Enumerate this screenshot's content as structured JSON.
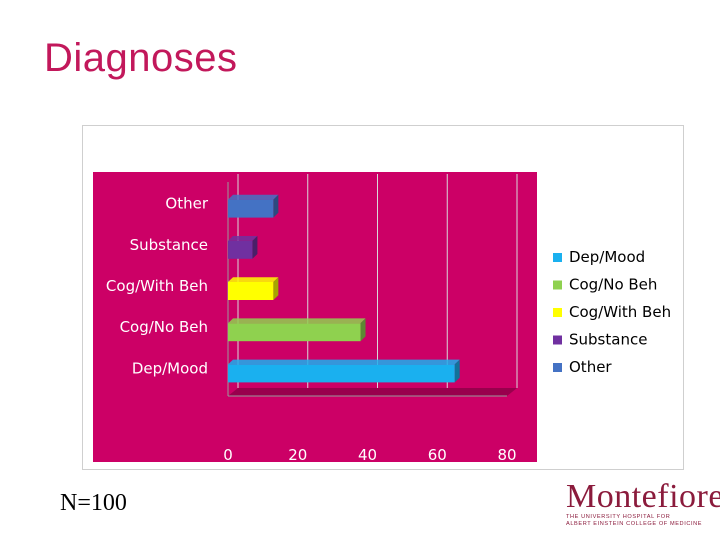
{
  "slide": {
    "title": "Diagnoses",
    "sample_size": "N=100",
    "logo": {
      "name": "Montefiore",
      "tagline_1": "THE UNIVERSITY HOSPITAL FOR",
      "tagline_2": "ALBERT EINSTEIN COLLEGE OF MEDICINE"
    }
  },
  "chart_data": {
    "type": "bar",
    "orientation": "horizontal",
    "style": "3d",
    "categories": [
      "Dep/Mood",
      "Cog/No Beh",
      "Cog/With Beh",
      "Substance",
      "Other"
    ],
    "values": [
      65,
      38,
      13,
      7,
      13
    ],
    "colors": [
      "#1ab0ef",
      "#8fd14f",
      "#ffff00",
      "#7030a0",
      "#4472c4"
    ],
    "xlim": [
      0,
      80
    ],
    "xticks": [
      "0",
      "20",
      "40",
      "60",
      "80"
    ],
    "legend": {
      "placement": "right",
      "entries": [
        "Dep/Mood",
        "Cog/No Beh",
        "Cog/With Beh",
        "Substance",
        "Other"
      ]
    },
    "background_color": "#cc0066",
    "grid": true,
    "title": "",
    "xlabel": "",
    "ylabel": ""
  }
}
